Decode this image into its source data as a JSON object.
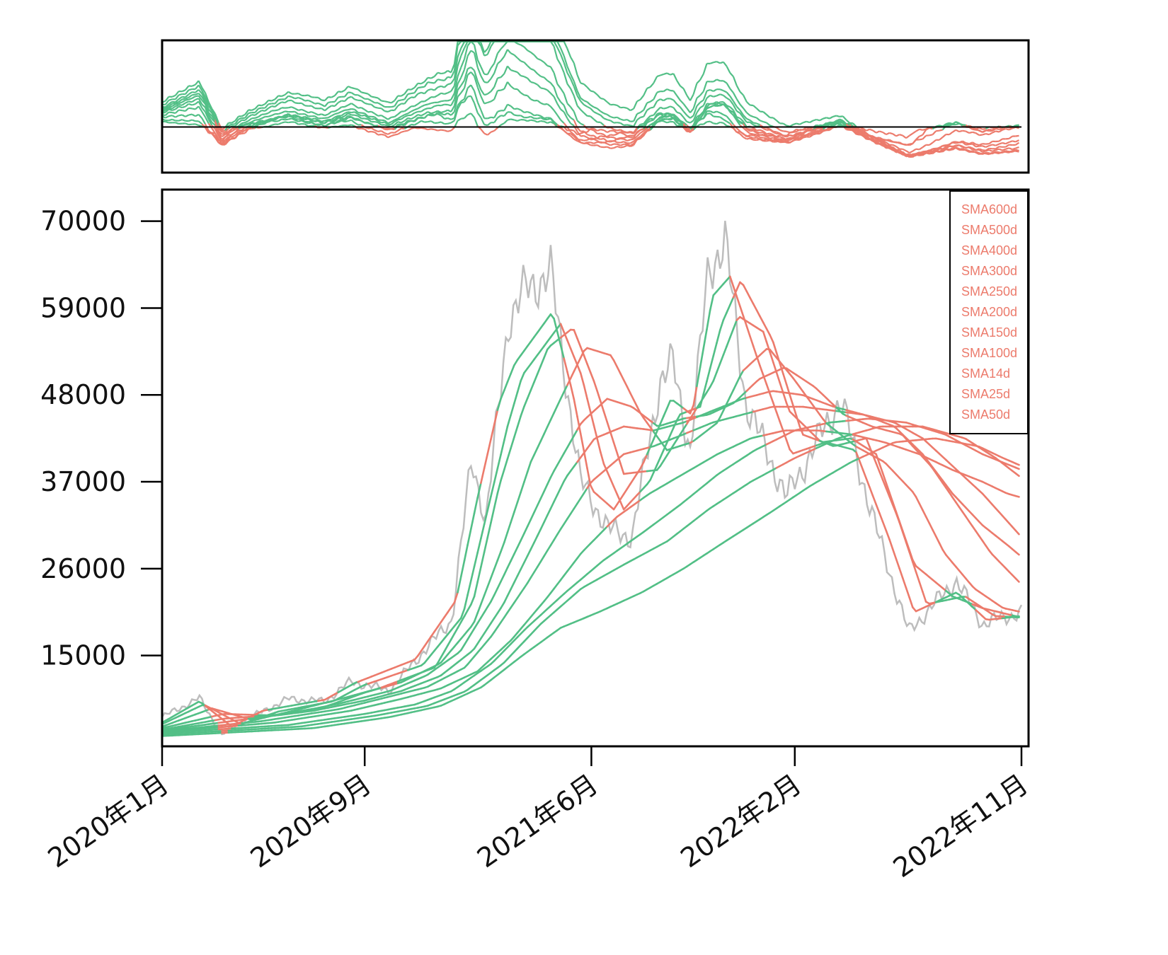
{
  "chart_data": {
    "type": "line",
    "title": "",
    "xlabel": "",
    "ylabel": "",
    "x_tick_labels": [
      "2020年1月",
      "2020年9月",
      "2021年6月",
      "2022年2月",
      "2022年11月"
    ],
    "x_tick_dates": [
      "2020-01-01",
      "2020-09-01",
      "2021-06-01",
      "2022-02-01",
      "2022-11-01"
    ],
    "x_range": [
      "2020-01-01",
      "2022-11-01"
    ],
    "y_ticks": [
      15000,
      26000,
      37000,
      48000,
      59000,
      70000
    ],
    "y_tick_labels": [
      "15000",
      "26000",
      "37000",
      "48000",
      "59000",
      "70000"
    ],
    "ylim": [
      3500,
      74000
    ],
    "colors": {
      "above": "#52bf86",
      "below": "#ec7b6c",
      "price": "#bdbdbd",
      "axis": "#000000"
    },
    "price": {
      "x": [
        "2020-01-01",
        "2020-02-15",
        "2020-03-13",
        "2020-04-15",
        "2020-06-01",
        "2020-07-15",
        "2020-08-15",
        "2020-10-01",
        "2020-11-15",
        "2020-12-15",
        "2021-01-08",
        "2021-01-25",
        "2021-02-21",
        "2021-03-13",
        "2021-04-13",
        "2021-05-19",
        "2021-06-22",
        "2021-07-20",
        "2021-08-23",
        "2021-09-07",
        "2021-09-28",
        "2021-10-20",
        "2021-11-09",
        "2021-12-04",
        "2022-01-22",
        "2022-03-28",
        "2022-05-10",
        "2022-06-18",
        "2022-08-14",
        "2022-09-15",
        "2022-11-01"
      ],
      "values": [
        7200,
        9600,
        5000,
        7100,
        9500,
        9200,
        11700,
        10600,
        16000,
        19500,
        40000,
        32000,
        57500,
        61200,
        63500,
        37000,
        31000,
        30000,
        49800,
        52000,
        41000,
        64000,
        67500,
        47000,
        35000,
        47500,
        31000,
        18000,
        24500,
        19000,
        20500
      ]
    },
    "series": [
      {
        "label": "SMA14d",
        "x": [
          "2020-01-01",
          "2020-02-15",
          "2020-03-25",
          "2020-05-01",
          "2020-07-15",
          "2020-08-20",
          "2020-11-01",
          "2020-12-20",
          "2021-01-15",
          "2021-02-10",
          "2021-03-01",
          "2021-04-15",
          "2021-05-10",
          "2021-06-01",
          "2021-06-28",
          "2021-08-01",
          "2021-09-05",
          "2021-09-30",
          "2021-10-25",
          "2021-11-15",
          "2021-12-20",
          "2022-01-28",
          "2022-03-10",
          "2022-04-15",
          "2022-05-25",
          "2022-06-25",
          "2022-08-15",
          "2022-09-20",
          "2022-11-01"
        ],
        "values": [
          6500,
          9200,
          6000,
          8000,
          9400,
          11500,
          14500,
          22000,
          35000,
          47000,
          52000,
          58500,
          48000,
          36000,
          33500,
          39000,
          47500,
          45500,
          60500,
          63000,
          52000,
          40500,
          42000,
          41000,
          30000,
          20500,
          23000,
          19500,
          20000
        ]
      },
      {
        "label": "SMA25d",
        "x": [
          "2020-01-01",
          "2020-02-20",
          "2020-04-05",
          "2020-05-20",
          "2020-07-25",
          "2020-08-30",
          "2020-11-10",
          "2020-12-28",
          "2021-01-25",
          "2021-02-20",
          "2021-03-10",
          "2021-04-25",
          "2021-05-20",
          "2021-06-15",
          "2021-07-10",
          "2021-08-10",
          "2021-09-15",
          "2021-10-10",
          "2021-11-05",
          "2021-11-28",
          "2022-01-05",
          "2022-02-10",
          "2022-03-20",
          "2022-04-28",
          "2022-06-05",
          "2022-07-10",
          "2022-08-25",
          "2022-09-30",
          "2022-11-01"
        ],
        "values": [
          6300,
          8800,
          6300,
          7900,
          9200,
          11200,
          13800,
          20000,
          32500,
          44000,
          50500,
          57000,
          50500,
          39500,
          33500,
          37000,
          45500,
          46500,
          57000,
          62500,
          55000,
          43000,
          41500,
          42500,
          32500,
          21500,
          22500,
          20000,
          19800
        ]
      },
      {
        "label": "SMA50d",
        "x": [
          "2020-01-01",
          "2020-03-01",
          "2020-04-20",
          "2020-06-15",
          "2020-08-10",
          "2020-09-20",
          "2020-11-25",
          "2021-01-10",
          "2021-02-10",
          "2021-03-10",
          "2021-04-10",
          "2021-05-10",
          "2021-06-05",
          "2021-07-10",
          "2021-08-20",
          "2021-09-25",
          "2021-10-25",
          "2021-11-25",
          "2021-12-25",
          "2022-01-25",
          "2022-03-05",
          "2022-04-10",
          "2022-05-10",
          "2022-06-25",
          "2022-08-10",
          "2022-09-15",
          "2022-11-01"
        ],
        "values": [
          6000,
          8300,
          6800,
          8200,
          9700,
          10900,
          13500,
          22000,
          36500,
          46000,
          54000,
          56500,
          49500,
          38000,
          38500,
          44500,
          49500,
          58000,
          56000,
          46000,
          42000,
          42500,
          40500,
          26500,
          22500,
          21000,
          19800
        ]
      },
      {
        "label": "SMA100d",
        "x": [
          "2020-01-01",
          "2020-03-15",
          "2020-05-15",
          "2020-07-15",
          "2020-09-01",
          "2020-10-15",
          "2020-12-01",
          "2021-01-10",
          "2021-02-15",
          "2021-03-20",
          "2021-04-25",
          "2021-05-25",
          "2021-06-25",
          "2021-07-31",
          "2021-08-31",
          "2021-09-30",
          "2021-10-31",
          "2021-11-30",
          "2021-12-31",
          "2022-01-31",
          "2022-03-10",
          "2022-04-15",
          "2022-05-20",
          "2022-06-25",
          "2022-07-31",
          "2022-09-05",
          "2022-10-10",
          "2022-11-01"
        ],
        "values": [
          5800,
          7600,
          7400,
          8500,
          10300,
          11600,
          14000,
          19000,
          29000,
          39500,
          47500,
          54000,
          53000,
          45500,
          41000,
          42000,
          44500,
          51000,
          54000,
          50000,
          44500,
          41500,
          39500,
          35500,
          28000,
          23500,
          21000,
          20500
        ]
      },
      {
        "label": "SMA150d",
        "x": [
          "2020-01-01",
          "2020-03-15",
          "2020-06-01",
          "2020-08-01",
          "2020-10-01",
          "2020-11-15",
          "2020-12-25",
          "2021-02-01",
          "2021-03-10",
          "2021-04-15",
          "2021-05-20",
          "2021-06-20",
          "2021-07-20",
          "2021-08-20",
          "2021-09-20",
          "2021-10-20",
          "2021-11-20",
          "2021-12-20",
          "2022-01-20",
          "2022-02-25",
          "2022-04-01",
          "2022-05-05",
          "2022-06-10",
          "2022-07-15",
          "2022-08-20",
          "2022-09-25",
          "2022-11-01"
        ],
        "values": [
          5600,
          7000,
          7600,
          8900,
          10500,
          12500,
          15500,
          22000,
          30000,
          38000,
          44500,
          47500,
          46500,
          44000,
          45000,
          45500,
          47000,
          50000,
          51500,
          49000,
          45500,
          44000,
          43000,
          39000,
          33500,
          28000,
          24000
        ]
      },
      {
        "label": "SMA200d",
        "x": [
          "2020-01-01",
          "2020-04-01",
          "2020-07-01",
          "2020-09-01",
          "2020-10-15",
          "2020-12-01",
          "2021-01-10",
          "2021-02-15",
          "2021-03-25",
          "2021-05-01",
          "2021-06-05",
          "2021-07-10",
          "2021-08-15",
          "2021-09-20",
          "2021-10-25",
          "2021-11-30",
          "2022-01-05",
          "2022-02-10",
          "2022-03-20",
          "2022-04-25",
          "2022-06-01",
          "2022-07-05",
          "2022-08-10",
          "2022-09-15",
          "2022-10-15",
          "2022-11-01"
        ],
        "values": [
          5500,
          6800,
          8000,
          9300,
          10500,
          12400,
          15700,
          21500,
          29500,
          37500,
          42500,
          44000,
          43500,
          44500,
          46000,
          47500,
          48500,
          48000,
          46500,
          45500,
          44000,
          40500,
          35500,
          31500,
          29000,
          27500
        ]
      },
      {
        "label": "SMA250d",
        "x": [
          "2020-01-01",
          "2020-05-01",
          "2020-08-01",
          "2020-10-01",
          "2020-11-15",
          "2020-12-31",
          "2021-02-01",
          "2021-03-15",
          "2021-04-25",
          "2021-06-01",
          "2021-07-10",
          "2021-08-15",
          "2021-09-20",
          "2021-10-25",
          "2021-11-30",
          "2022-01-05",
          "2022-02-10",
          "2022-03-20",
          "2022-04-25",
          "2022-06-01",
          "2022-07-05",
          "2022-08-10",
          "2022-09-15",
          "2022-10-15",
          "2022-11-01"
        ],
        "values": [
          5400,
          6700,
          8200,
          9800,
          11000,
          13500,
          17500,
          24000,
          31000,
          37000,
          40500,
          41500,
          43000,
          44500,
          45500,
          46500,
          46500,
          46000,
          45500,
          44500,
          42500,
          39000,
          35500,
          32000,
          30000
        ]
      },
      {
        "label": "SMA300d",
        "x": [
          "2020-01-01",
          "2020-05-15",
          "2020-08-15",
          "2020-10-15",
          "2020-12-01",
          "2021-01-15",
          "2021-02-25",
          "2021-04-10",
          "2021-05-20",
          "2021-07-01",
          "2021-08-10",
          "2021-09-20",
          "2021-10-31",
          "2021-12-10",
          "2022-01-20",
          "2022-03-01",
          "2022-04-10",
          "2022-05-20",
          "2022-07-01",
          "2022-08-10",
          "2022-09-15",
          "2022-10-15",
          "2022-11-01"
        ],
        "values": [
          5300,
          6500,
          8000,
          9500,
          10800,
          13000,
          17000,
          22500,
          28000,
          32500,
          35500,
          38000,
          40500,
          42500,
          43500,
          43500,
          43000,
          42000,
          40500,
          38500,
          37000,
          35500,
          35000
        ]
      },
      {
        "label": "SMA400d",
        "x": [
          "2020-01-01",
          "2020-06-01",
          "2020-09-01",
          "2020-11-01",
          "2020-12-15",
          "2021-02-01",
          "2021-03-15",
          "2021-05-01",
          "2021-06-15",
          "2021-08-01",
          "2021-09-15",
          "2021-11-01",
          "2021-12-15",
          "2022-02-01",
          "2022-03-15",
          "2022-05-01",
          "2022-06-15",
          "2022-08-01",
          "2022-09-15",
          "2022-11-01"
        ],
        "values": [
          5200,
          6200,
          7600,
          8800,
          10500,
          14000,
          18500,
          23000,
          27000,
          30500,
          34000,
          38000,
          41000,
          43500,
          44500,
          45000,
          44500,
          43000,
          40500,
          38500
        ]
      },
      {
        "label": "SMA500d",
        "x": [
          "2020-01-01",
          "2020-06-15",
          "2020-09-15",
          "2020-11-15",
          "2021-01-01",
          "2021-02-15",
          "2021-04-01",
          "2021-05-20",
          "2021-07-10",
          "2021-09-01",
          "2021-10-20",
          "2021-12-10",
          "2022-02-01",
          "2022-03-25",
          "2022-05-15",
          "2022-07-05",
          "2022-08-25",
          "2022-10-01",
          "2022-11-01"
        ],
        "values": [
          5000,
          6000,
          7400,
          8600,
          10500,
          14000,
          19000,
          23500,
          26500,
          29500,
          33500,
          37000,
          40000,
          42500,
          44000,
          44000,
          42500,
          40000,
          37500
        ]
      },
      {
        "label": "SMA600d",
        "x": [
          "2020-01-01",
          "2020-07-01",
          "2020-10-01",
          "2020-12-01",
          "2021-01-20",
          "2021-03-10",
          "2021-04-25",
          "2021-06-10",
          "2021-08-01",
          "2021-09-20",
          "2021-11-10",
          "2022-01-01",
          "2022-02-20",
          "2022-04-10",
          "2022-06-01",
          "2022-07-20",
          "2022-09-10",
          "2022-10-10",
          "2022-11-01"
        ],
        "values": [
          4800,
          5800,
          7200,
          8600,
          11000,
          15000,
          18500,
          20500,
          23000,
          26000,
          29500,
          33000,
          36500,
          39500,
          42000,
          42500,
          41500,
          40000,
          39000
        ]
      }
    ],
    "legend": {
      "placement": "top-right",
      "entries": [
        "SMA600d",
        "SMA500d",
        "SMA400d",
        "SMA300d",
        "SMA250d",
        "SMA200d",
        "SMA150d",
        "SMA100d",
        "SMA14d",
        "SMA25d",
        "SMA50d"
      ]
    },
    "oscillator": {
      "type": "line",
      "description_free": true,
      "baseline": 0,
      "ylim": [
        -2.0,
        3.8
      ],
      "grid": false
    }
  }
}
